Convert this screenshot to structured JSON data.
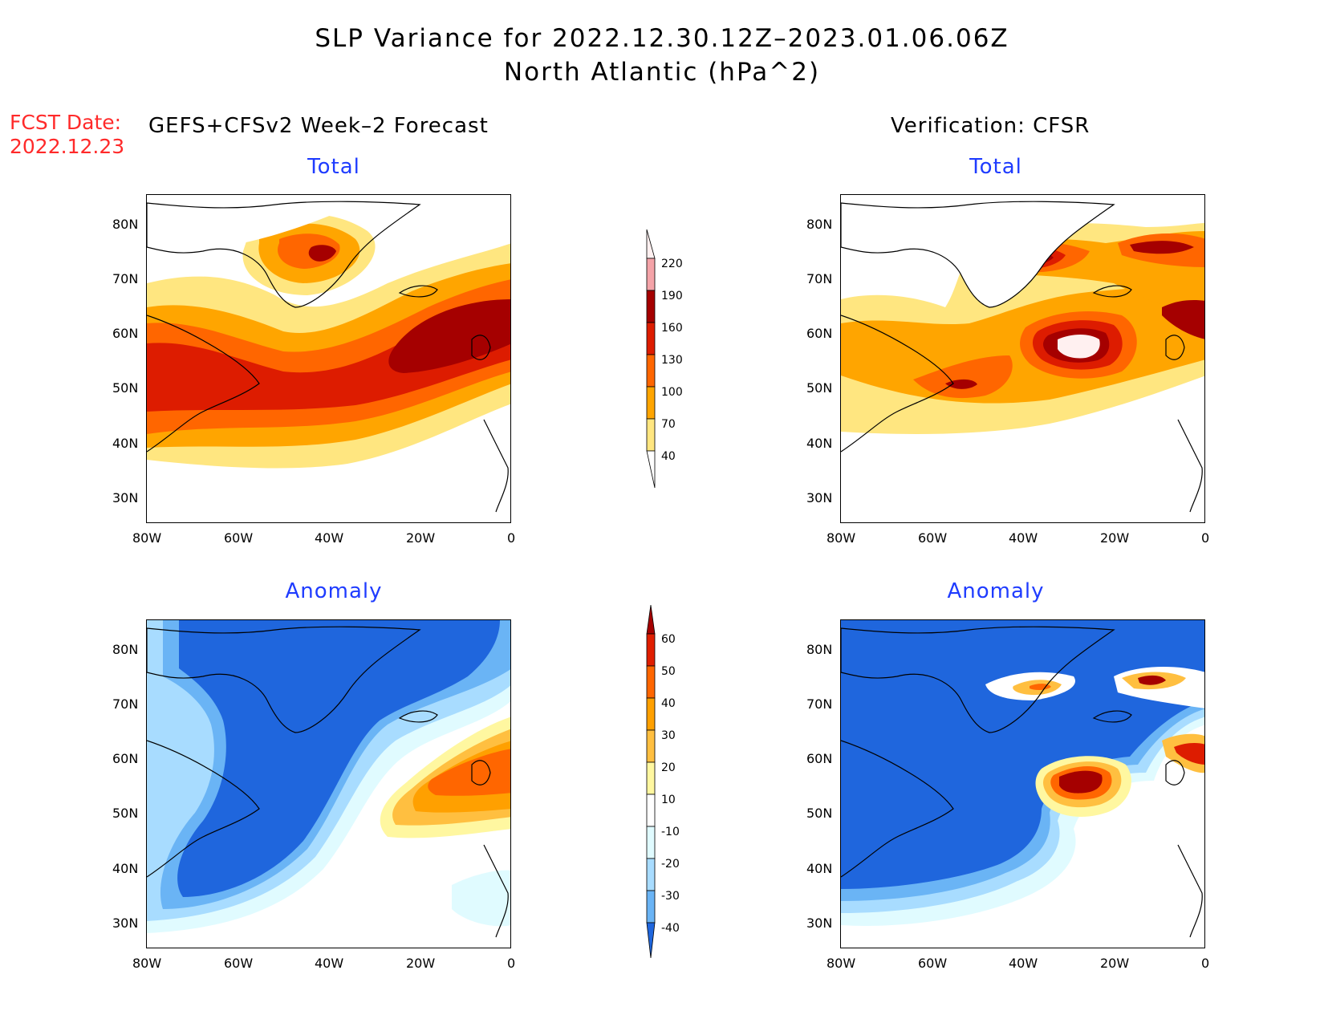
{
  "title": {
    "line1": "SLP Variance for 2022.12.30.12Z–2023.01.06.06Z",
    "line2": "North Atlantic (hPa^2)"
  },
  "fcst_date": {
    "label": "FCST Date:",
    "value": "2022.12.23"
  },
  "headers": {
    "left": "GEFS+CFSv2 Week–2 Forecast",
    "right": "Verification: CFSR"
  },
  "panels": {
    "top_left_title": "Total",
    "top_right_title": "Total",
    "bottom_left_title": "Anomaly",
    "bottom_right_title": "Anomaly"
  },
  "axes": {
    "lat_labels": [
      "80N",
      "70N",
      "60N",
      "50N",
      "40N",
      "30N"
    ],
    "lon_labels": [
      "80W",
      "60W",
      "40W",
      "20W",
      "0"
    ]
  },
  "colorbars": {
    "total": {
      "levels": [
        "220",
        "190",
        "160",
        "130",
        "100",
        "70",
        "40"
      ],
      "colors": [
        "#fff0f0",
        "#f4a3a8",
        "#a50000",
        "#dd1c00",
        "#ff6600",
        "#ffa500",
        "#ffe680"
      ]
    },
    "anomaly": {
      "levels": [
        "60",
        "50",
        "40",
        "30",
        "20",
        "10",
        "-10",
        "-20",
        "-30",
        "-40"
      ],
      "colors": [
        "#a50000",
        "#e01e00",
        "#ff6600",
        "#ffa000",
        "#ffbf40",
        "#fff7a0",
        "#ffffff",
        "#e0fbff",
        "#a8dcff",
        "#6ab4f5",
        "#1f66dd"
      ]
    }
  }
}
